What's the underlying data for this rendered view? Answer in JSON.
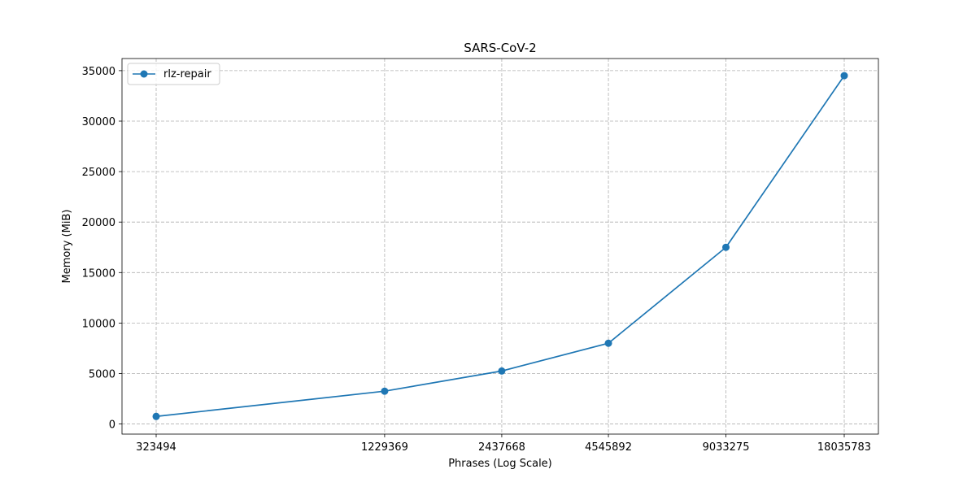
{
  "chart_data": {
    "type": "line",
    "title": "SARS-CoV-2",
    "xlabel": "Phrases (Log Scale)",
    "ylabel": "Memory (MiB)",
    "xscale": "log",
    "x": [
      323494,
      1229369,
      2437668,
      4545892,
      9033275,
      18035783
    ],
    "x_tick_labels": [
      "323494",
      "1229369",
      "2437668",
      "4545892",
      "9033275",
      "18035783"
    ],
    "y_ticks": [
      0,
      5000,
      10000,
      15000,
      20000,
      25000,
      30000,
      35000
    ],
    "y_tick_labels": [
      "0",
      "5000",
      "10000",
      "15000",
      "20000",
      "25000",
      "30000",
      "35000"
    ],
    "ylim": [
      -1000,
      36200
    ],
    "grid": true,
    "legend_position": "top-left",
    "series": [
      {
        "name": "rlz-repair",
        "color": "#1f77b4",
        "marker": "circle",
        "values": [
          750,
          3250,
          5250,
          8000,
          17500,
          34500
        ]
      }
    ]
  }
}
